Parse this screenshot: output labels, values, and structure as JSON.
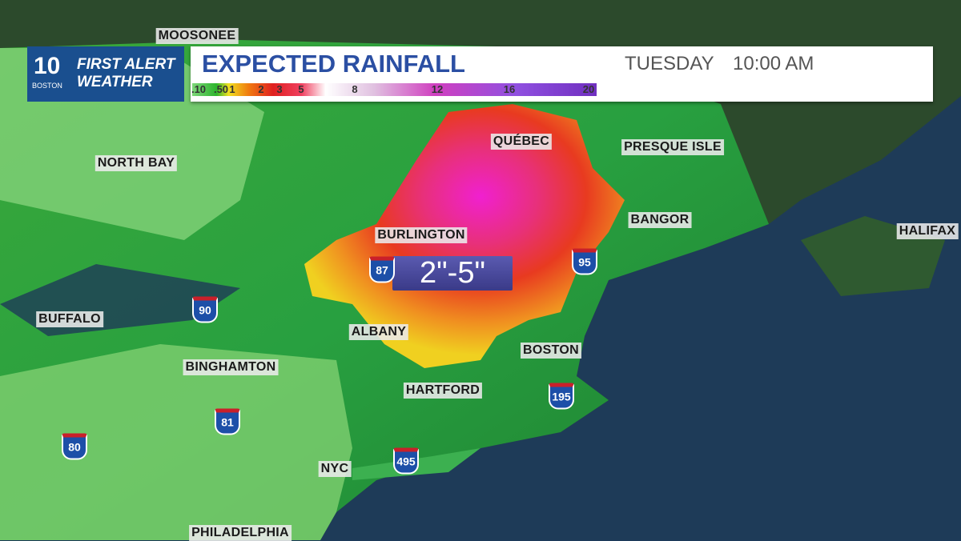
{
  "header": {
    "logo": {
      "number": "10",
      "station": "BOSTON",
      "brand_line1": "FIRST ALERT",
      "brand_line2": "WEATHER"
    },
    "title": "EXPECTED RAINFALL",
    "day": "TUESDAY",
    "time": "10:00 AM"
  },
  "legend": {
    "ticks": [
      ".10",
      ".50",
      "1",
      "2",
      "3",
      "5",
      "8",
      "12",
      "16",
      "20"
    ]
  },
  "callout": "2\"-5\"",
  "cities": [
    "MOOSONEE",
    "NORTH BAY",
    "QUÉBEC",
    "PRESQUE ISLE",
    "BANGOR",
    "HALIFAX",
    "BURLINGTON",
    "BUFFALO",
    "ALBANY",
    "BOSTON",
    "BINGHAMTON",
    "HARTFORD",
    "NYC",
    "PHILADELPHIA"
  ],
  "highways": [
    "87",
    "95",
    "90",
    "81",
    "80",
    "195",
    "495"
  ]
}
